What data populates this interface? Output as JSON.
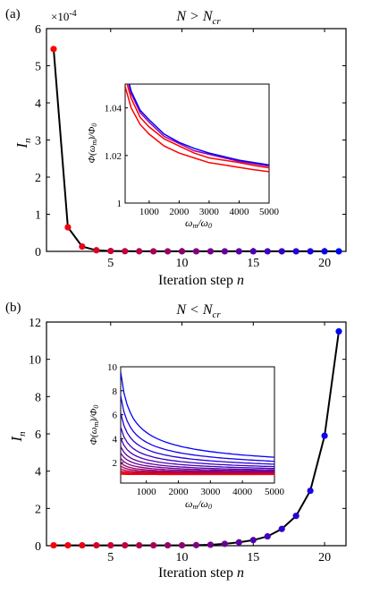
{
  "chart_data": [
    {
      "panel_label": "(a)",
      "type": "scatter",
      "title": "N > N_cr",
      "xlabel": "Iteration step n",
      "ylabel": "I_n",
      "y_exponent": "×10-4",
      "xlim": [
        0.5,
        21.5
      ],
      "ylim": [
        0,
        6
      ],
      "xticks": [
        "5",
        "10",
        "15",
        "20"
      ],
      "yticks": [
        "0",
        "1",
        "2",
        "3",
        "4",
        "5",
        "6"
      ],
      "color_gradient": [
        "#ff0000",
        "#0000ff"
      ],
      "x": [
        1,
        2,
        3,
        4,
        5,
        6,
        7,
        8,
        9,
        10,
        11,
        12,
        13,
        14,
        15,
        16,
        17,
        18,
        19,
        20,
        21
      ],
      "y": [
        5.45,
        0.65,
        0.13,
        0.03,
        0.01,
        0.005,
        0.003,
        0.002,
        0.002,
        0.002,
        0.002,
        0.002,
        0.002,
        0.002,
        0.002,
        0.002,
        0.002,
        0.002,
        0.002,
        0.002,
        0.002
      ],
      "inset": {
        "type": "line",
        "xlabel": "ωm/ω0",
        "ylabel": "Φ(ωm)/Φ0",
        "xlim": [
          200,
          5000
        ],
        "ylim": [
          1,
          1.05
        ],
        "xticks": [
          "1000",
          "2000",
          "3000",
          "4000",
          "5000"
        ],
        "yticks": [
          "1",
          "1.02",
          "1.04"
        ],
        "series": [
          {
            "color": "#ff0000",
            "x": [
              200,
              400,
              700,
              1000,
              1500,
              2000,
              2500,
              3000,
              3500,
              4000,
              4500,
              5000
            ],
            "y": [
              1.049,
              1.04,
              1.033,
              1.029,
              1.024,
              1.021,
              1.019,
              1.017,
              1.016,
              1.015,
              1.014,
              1.0132
            ]
          },
          {
            "color": "#ff0000",
            "x": [
              200,
              400,
              700,
              1000,
              1500,
              2000,
              2500,
              3000,
              3500,
              4000,
              4500,
              5000
            ],
            "y": [
              1.053,
              1.044,
              1.036,
              1.032,
              1.027,
              1.024,
              1.021,
              1.019,
              1.018,
              1.017,
              1.0158,
              1.0148
            ]
          },
          {
            "color": "#a000a0",
            "x": [
              200,
              400,
              700,
              1000,
              1500,
              2000,
              2500,
              3000,
              3500,
              4000,
              4500,
              5000
            ],
            "y": [
              1.056,
              1.046,
              1.038,
              1.034,
              1.028,
              1.025,
              1.022,
              1.0205,
              1.019,
              1.0175,
              1.0165,
              1.0155
            ]
          },
          {
            "color": "#0000ff",
            "x": [
              200,
              400,
              700,
              1000,
              1500,
              2000,
              2500,
              3000,
              3500,
              4000,
              4500,
              5000
            ],
            "y": [
              1.057,
              1.047,
              1.039,
              1.035,
              1.029,
              1.0255,
              1.023,
              1.021,
              1.0195,
              1.018,
              1.017,
              1.016
            ]
          }
        ]
      }
    },
    {
      "panel_label": "(b)",
      "type": "scatter",
      "title": "N < N_cr",
      "xlabel": "Iteration step n",
      "ylabel": "I_n",
      "xlim": [
        0.5,
        21.5
      ],
      "ylim": [
        0,
        12
      ],
      "xticks": [
        "5",
        "10",
        "15",
        "20"
      ],
      "yticks": [
        "0",
        "2",
        "4",
        "6",
        "8",
        "10",
        "12"
      ],
      "color_gradient": [
        "#ff0000",
        "#0000ff"
      ],
      "x": [
        1,
        2,
        3,
        4,
        5,
        6,
        7,
        8,
        9,
        10,
        11,
        12,
        13,
        14,
        15,
        16,
        17,
        18,
        19,
        20,
        21
      ],
      "y": [
        0.02,
        0.02,
        0.02,
        0.02,
        0.02,
        0.02,
        0.02,
        0.02,
        0.02,
        0.02,
        0.03,
        0.05,
        0.1,
        0.18,
        0.3,
        0.5,
        0.9,
        1.6,
        2.95,
        5.9,
        11.5
      ],
      "inset": {
        "type": "line",
        "xlabel": "ωm/ω0",
        "ylabel": "Φ(ωm)/Φ0",
        "xlim": [
          200,
          5000
        ],
        "ylim": [
          0.3,
          10
        ],
        "xticks": [
          "1000",
          "2000",
          "3000",
          "4000",
          "5000"
        ],
        "yticks": [
          "2",
          "4",
          "6",
          "8",
          "10"
        ],
        "series_amplitudes": [
          9.5,
          7.3,
          5.7,
          4.4,
          3.4,
          2.6,
          2.0,
          1.5,
          1.1,
          0.8,
          0.55,
          0.35,
          0.2,
          0.1,
          0.04
        ],
        "series_decay_exponent": 0.55
      }
    }
  ]
}
